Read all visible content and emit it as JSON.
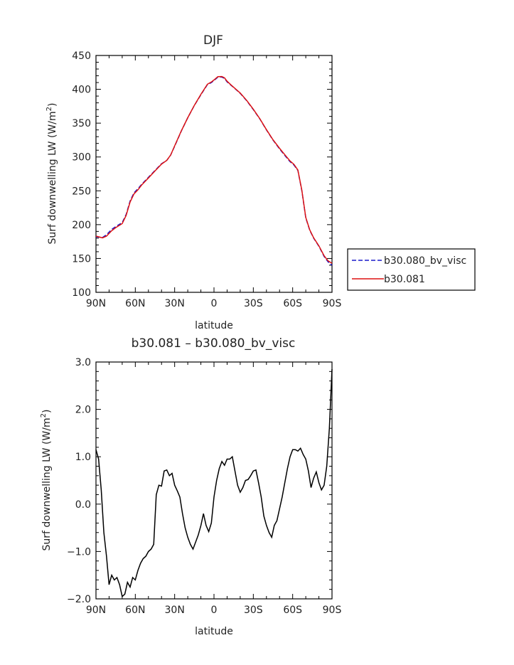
{
  "chart_data": [
    {
      "type": "line",
      "title": "DJF",
      "xlabel": "latitude",
      "ylabel": "Surf downwelling LW (W/m",
      "ylabel_sup": "2",
      "ylabel_end": ")",
      "xlim": [
        -90,
        90
      ],
      "ylim": [
        100,
        450
      ],
      "x_tick_values": [
        -90,
        -60,
        -30,
        0,
        30,
        60,
        90
      ],
      "x_tick_labels": [
        "90N",
        "60N",
        "30N",
        "0",
        "30S",
        "60S",
        "90S"
      ],
      "y_tick_values": [
        100,
        150,
        200,
        250,
        300,
        350,
        400,
        450
      ],
      "y_tick_labels": [
        "100",
        "150",
        "200",
        "250",
        "300",
        "350",
        "400",
        "450"
      ],
      "legend": {
        "placement": "right",
        "entries": [
          "b30.080_bv_visc",
          "b30.081"
        ]
      },
      "series": [
        {
          "name": "b30.080_bv_visc",
          "color": "#1a1acc",
          "style": "dashed",
          "x": [
            -90,
            -85,
            -82,
            -78,
            -75,
            -70,
            -67,
            -64,
            -61,
            -58,
            -55,
            -50,
            -45,
            -40,
            -36,
            -33,
            -30,
            -25,
            -20,
            -15,
            -10,
            -5,
            -2,
            0,
            3,
            6,
            8,
            10,
            13,
            16,
            20,
            25,
            30,
            35,
            40,
            45,
            50,
            55,
            58,
            61,
            64,
            67,
            70,
            73,
            76,
            80,
            84,
            87,
            90
          ],
          "y": [
            182,
            181,
            185,
            193,
            197,
            203,
            215,
            235,
            247,
            253,
            260,
            270,
            280,
            290,
            295,
            303,
            316,
            338,
            358,
            376,
            392,
            407,
            410,
            413,
            418,
            418,
            416,
            411,
            406,
            401,
            394,
            383,
            370,
            356,
            340,
            325,
            312,
            300,
            293,
            288,
            280,
            250,
            210,
            192,
            180,
            168,
            153,
            145,
            140
          ]
        },
        {
          "name": "b30.081",
          "color": "#dd1111",
          "style": "solid",
          "x": [
            -90,
            -85,
            -82,
            -78,
            -75,
            -70,
            -67,
            -64,
            -61,
            -58,
            -55,
            -50,
            -45,
            -40,
            -36,
            -33,
            -30,
            -25,
            -20,
            -15,
            -10,
            -5,
            -2,
            0,
            3,
            6,
            8,
            10,
            13,
            16,
            20,
            25,
            30,
            35,
            40,
            45,
            50,
            55,
            58,
            61,
            64,
            67,
            70,
            73,
            76,
            80,
            84,
            87,
            90
          ],
          "y": [
            183,
            180.5,
            183,
            191,
            195.5,
            201.5,
            213.5,
            233.5,
            245.5,
            251.5,
            259,
            269,
            279.3,
            289.5,
            295,
            303,
            316.5,
            338.3,
            358,
            376.2,
            392.6,
            407.5,
            410.8,
            413.8,
            418.8,
            418.9,
            416.9,
            412,
            406.5,
            401.3,
            394.5,
            383.5,
            370.5,
            356.3,
            340.4,
            325.5,
            312.8,
            301.1,
            294.1,
            289.1,
            280.7,
            250.7,
            210.7,
            192.5,
            180.5,
            168.6,
            154,
            146.5,
            143
          ]
        }
      ]
    },
    {
      "type": "line",
      "title": "b30.081 – b30.080_bv_visc",
      "xlabel": "latitude",
      "ylabel": "Surf downwelling LW (W/m",
      "ylabel_sup": "2",
      "ylabel_end": ")",
      "xlim": [
        -90,
        90
      ],
      "ylim": [
        -2.0,
        3.0
      ],
      "x_tick_values": [
        -90,
        -60,
        -30,
        0,
        30,
        60,
        90
      ],
      "x_tick_labels": [
        "90N",
        "60N",
        "30N",
        "0",
        "30S",
        "60S",
        "90S"
      ],
      "y_tick_values": [
        -2.0,
        -1.0,
        0.0,
        1.0,
        2.0,
        3.0
      ],
      "y_tick_labels": [
        "−2.0",
        "−1.0",
        "0.0",
        "1.0",
        "2.0",
        "3.0"
      ],
      "series": [
        {
          "color": "#000000",
          "style": "solid",
          "x": [
            -90,
            -88,
            -86,
            -84,
            -82,
            -80,
            -78,
            -76,
            -74,
            -72,
            -70,
            -68,
            -66,
            -64,
            -62,
            -60,
            -58,
            -56,
            -54,
            -52,
            -50,
            -48,
            -46,
            -44,
            -42,
            -40,
            -38,
            -36,
            -34,
            -32,
            -30,
            -28,
            -26,
            -24,
            -22,
            -20,
            -18,
            -16,
            -14,
            -12,
            -10,
            -8,
            -6,
            -4,
            -2,
            0,
            2,
            4,
            6,
            8,
            10,
            12,
            14,
            16,
            18,
            20,
            22,
            24,
            26,
            28,
            30,
            32,
            34,
            36,
            38,
            40,
            42,
            44,
            46,
            48,
            50,
            52,
            54,
            56,
            58,
            60,
            62,
            64,
            66,
            68,
            70,
            72,
            74,
            76,
            78,
            80,
            82,
            84,
            86,
            88,
            90
          ],
          "y": [
            1.15,
            0.95,
            0.3,
            -0.6,
            -1.1,
            -1.7,
            -1.5,
            -1.6,
            -1.55,
            -1.7,
            -1.95,
            -1.9,
            -1.65,
            -1.75,
            -1.55,
            -1.6,
            -1.4,
            -1.25,
            -1.15,
            -1.1,
            -1.0,
            -0.95,
            -0.85,
            0.2,
            0.4,
            0.38,
            0.7,
            0.72,
            0.6,
            0.65,
            0.4,
            0.28,
            0.15,
            -0.2,
            -0.5,
            -0.7,
            -0.85,
            -0.95,
            -0.8,
            -0.65,
            -0.45,
            -0.2,
            -0.45,
            -0.58,
            -0.4,
            0.15,
            0.5,
            0.75,
            0.9,
            0.82,
            0.95,
            0.95,
            1.0,
            0.7,
            0.4,
            0.25,
            0.35,
            0.5,
            0.52,
            0.6,
            0.7,
            0.72,
            0.45,
            0.15,
            -0.25,
            -0.45,
            -0.6,
            -0.7,
            -0.45,
            -0.35,
            -0.1,
            0.15,
            0.45,
            0.75,
            1.0,
            1.15,
            1.15,
            1.12,
            1.18,
            1.05,
            0.95,
            0.7,
            0.35,
            0.55,
            0.68,
            0.45,
            0.3,
            0.4,
            0.8,
            1.6,
            2.85
          ]
        }
      ]
    }
  ]
}
